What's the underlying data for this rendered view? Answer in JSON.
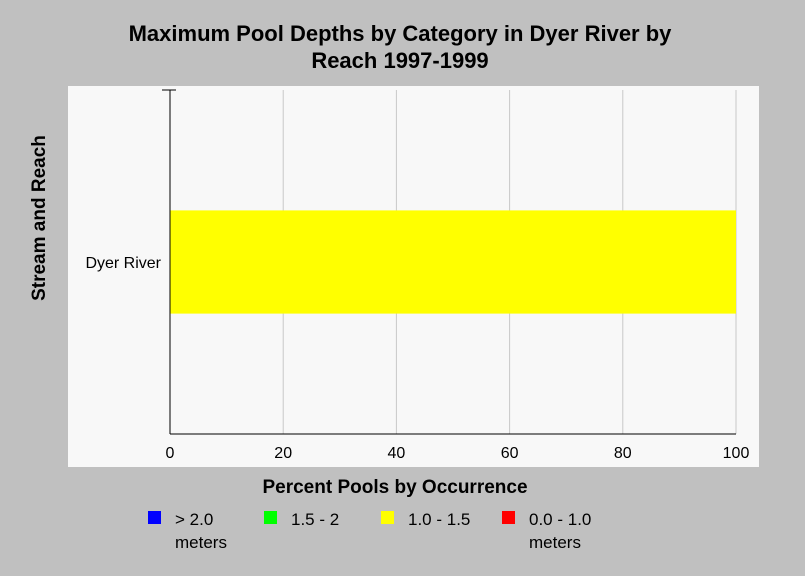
{
  "chart_data": {
    "type": "bar",
    "orientation": "horizontal",
    "stacked": true,
    "title_lines": [
      "Maximum Pool Depths by Category in Dyer River by",
      "Reach 1997-1999"
    ],
    "xlabel": "Percent Pools by Occurrence",
    "ylabel": "Stream and Reach",
    "categories": [
      "Dyer River"
    ],
    "xlim": [
      0,
      100
    ],
    "xticks": [
      0,
      20,
      40,
      60,
      80,
      100
    ],
    "grid": "vertical",
    "legend_position": "bottom",
    "series": [
      {
        "name": "> 2.0 meters",
        "color": "#0000ff",
        "values": [
          0
        ]
      },
      {
        "name": "1.5 - 2",
        "color": "#00ff00",
        "values": [
          0
        ]
      },
      {
        "name": "1.0 - 1.5",
        "color": "#ffff00",
        "values": [
          100
        ]
      },
      {
        "name": "0.0 - 1.0 meters",
        "color": "#ff0000",
        "values": [
          0
        ]
      }
    ]
  },
  "legend": [
    {
      "label": "> 2.0\nmeters",
      "color": "#0000ff"
    },
    {
      "label": "1.5 - 2",
      "color": "#00ff00"
    },
    {
      "label": "1.0 - 1.5",
      "color": "#ffff00"
    },
    {
      "label": "0.0 - 1.0\nmeters",
      "color": "#ff0000"
    }
  ]
}
